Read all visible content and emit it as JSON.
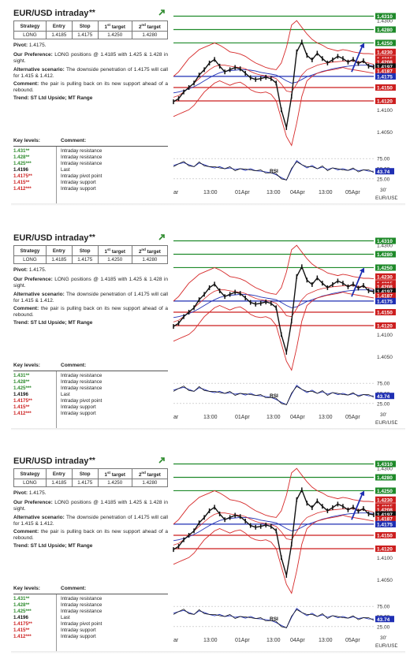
{
  "title": "EUR/USD intraday",
  "title_stars": "**",
  "strategy_table": {
    "headers": [
      "Strategy",
      "Entry",
      "Stop",
      "1st target",
      "2nd target"
    ],
    "header_parts": [
      {
        "main": "Strategy",
        "sup": ""
      },
      {
        "main": "Entry",
        "sup": ""
      },
      {
        "main": "Stop",
        "sup": ""
      },
      {
        "main": "1",
        "sup": "st",
        "rest": " target"
      },
      {
        "main": "2",
        "sup": "nd",
        "rest": " target"
      }
    ],
    "row": [
      "LONG",
      "1.4185",
      "1.4175",
      "1.4250",
      "1.4280"
    ]
  },
  "pivot_label": "Pivot:",
  "pivot_value": "1.4175.",
  "preference_label": "Our Preference:",
  "preference_text": "LONG positions @ 1.4185 with 1.425 & 1.428 in sight.",
  "alternative_label": "Alternative scenario:",
  "alternative_text": "The downside penetration of 1.4175 will call for 1.415 & 1.412.",
  "comment_label": "Comment:",
  "comment_text": "the pair is pulling back on its new support ahead of a rebound.",
  "trend_text": "Trend: ST Ltd Upside; MT Range",
  "key_levels_header": "Key levels:",
  "comment_header": "Comment:",
  "key_levels": [
    {
      "level": "1.431**",
      "comment": "Intraday resistance",
      "color": "#2e8b2e"
    },
    {
      "level": "1.428**",
      "comment": "Intraday resistance",
      "color": "#2e8b2e"
    },
    {
      "level": "1.425***",
      "comment": "Intraday resistance",
      "color": "#2e8b2e"
    },
    {
      "level": "1.4196",
      "comment": "Last",
      "color": "#111111"
    },
    {
      "level": "1.4175**",
      "comment": "Intraday pivot point",
      "color": "#cc1f1f"
    },
    {
      "level": "1.415**",
      "comment": "Intraday support",
      "color": "#cc1f1f"
    },
    {
      "level": "1.412***",
      "comment": "Intraday support",
      "color": "#cc1f1f"
    }
  ],
  "chart_data": {
    "type": "line",
    "title": "",
    "xlabel": "",
    "ylabel": "",
    "x_ticks": [
      "ar",
      "13:00",
      "01Apr",
      "13:00",
      "04Apr",
      "13:00",
      "05Apr"
    ],
    "y_ticks": [
      "1.4300",
      "1.4250",
      "1.4200",
      "1.4150",
      "1.4100",
      "1.4050"
    ],
    "ylim": [
      1.4028,
      1.4318
    ],
    "series": [
      {
        "values": [
          1.4118,
          1.4125,
          1.414,
          1.415,
          1.416,
          1.4178,
          1.419,
          1.4205,
          1.4213,
          1.4198,
          1.4185,
          1.419,
          1.4195,
          1.4192,
          1.4182,
          1.4172,
          1.4168,
          1.417,
          1.4173,
          1.417,
          1.416,
          1.41,
          1.406,
          1.413,
          1.423,
          1.4252,
          1.4222,
          1.4212,
          1.4227,
          1.4215,
          1.4205,
          1.4212,
          1.422,
          1.4215,
          1.4207,
          1.4213,
          1.4204,
          1.421,
          1.4198,
          1.4196
        ]
      },
      {
        "values": [
          1.4175,
          1.4185,
          1.42,
          1.4215,
          1.4225,
          1.4235,
          1.424,
          1.4245,
          1.425,
          1.4245,
          1.4238,
          1.423,
          1.4228,
          1.4225,
          1.422,
          1.4212,
          1.4205,
          1.42,
          1.4195,
          1.4192,
          1.419,
          1.4205,
          1.424,
          1.429,
          1.43,
          1.4285,
          1.427,
          1.4258,
          1.425,
          1.4245,
          1.4238,
          1.4235,
          1.4232,
          1.4235,
          1.4233,
          1.423,
          1.4228,
          1.4226,
          1.4226,
          1.4225
        ]
      },
      {
        "values": [
          1.4085,
          1.409,
          1.4095,
          1.41,
          1.411,
          1.4125,
          1.414,
          1.415,
          1.416,
          1.4165,
          1.416,
          1.4155,
          1.416,
          1.4162,
          1.4155,
          1.4145,
          1.414,
          1.4138,
          1.414,
          1.4135,
          1.412,
          1.408,
          1.404,
          1.402,
          1.407,
          1.413,
          1.4165,
          1.4175,
          1.4182,
          1.4185,
          1.4188,
          1.419,
          1.4192,
          1.4195,
          1.4192,
          1.419,
          1.4188,
          1.4186,
          1.4184,
          1.4182
        ]
      },
      {
        "values": [
          1.4128,
          1.4132,
          1.414,
          1.415,
          1.416,
          1.417,
          1.418,
          1.419,
          1.4197,
          1.42,
          1.42,
          1.4198,
          1.4196,
          1.4195,
          1.4192,
          1.4186,
          1.4181,
          1.4178,
          1.4176,
          1.4174,
          1.417,
          1.4158,
          1.4142,
          1.414,
          1.4158,
          1.4178,
          1.419,
          1.4195,
          1.42,
          1.4203,
          1.4205,
          1.4207,
          1.4208,
          1.4209,
          1.421,
          1.4209,
          1.4208,
          1.4207,
          1.4205,
          1.4202
        ]
      },
      {
        "values": [
          1.4138,
          1.414,
          1.4143,
          1.4147,
          1.4152,
          1.4158,
          1.4165,
          1.4172,
          1.4178,
          1.4183,
          1.4186,
          1.4188,
          1.4189,
          1.419,
          1.419,
          1.4189,
          1.4187,
          1.4184,
          1.4182,
          1.418,
          1.4178,
          1.4172,
          1.4165,
          1.416,
          1.4162,
          1.4168,
          1.4174,
          1.4178,
          1.4182,
          1.4186,
          1.4189,
          1.4192,
          1.4194,
          1.4196,
          1.4198,
          1.4199,
          1.42,
          1.42,
          1.42,
          1.4199
        ]
      }
    ],
    "levels": [
      {
        "label": "1.4310",
        "value": 1.431,
        "color": "#1f8a2a"
      },
      {
        "label": "1.4280",
        "value": 1.428,
        "color": "#1f8a2a"
      },
      {
        "label": "1.4250",
        "value": 1.425,
        "color": "#1f8a2a"
      },
      {
        "label": "1.4175",
        "value": 1.4175,
        "color": "#1f2fb3"
      },
      {
        "label": "1.4150",
        "value": 1.415,
        "color": "#cc1f1f"
      },
      {
        "label": "1.4120",
        "value": 1.412,
        "color": "#cc1f1f"
      }
    ],
    "price_tags": [
      {
        "label": "1.4230",
        "value": 1.423,
        "color": "#cc1f1f"
      },
      {
        "label": "1.4215",
        "value": 1.4215,
        "color": "#cc1f1f"
      },
      {
        "label": "1.4208",
        "value": 1.4208,
        "color": "#cc1f1f"
      },
      {
        "label": "1.4197",
        "value": 1.4197,
        "color": "#111111"
      },
      {
        "label": "1.4187",
        "value": 1.4187,
        "color": "#cc1f1f"
      },
      {
        "label": "1.4175",
        "value": 1.4175,
        "color": "#1f2fb3"
      }
    ],
    "rsi": {
      "label": "RSI",
      "y_ticks": [
        "75.00",
        "50.00",
        "25.00"
      ],
      "ylim": [
        15,
        85
      ],
      "last_label": "43.74",
      "last_value": 43.74,
      "values": [
        58,
        62,
        65,
        60,
        55,
        64,
        60,
        55,
        52,
        55,
        50,
        52,
        48,
        50,
        46,
        50,
        45,
        44,
        42,
        40,
        35,
        28,
        22,
        48,
        70,
        60,
        52,
        58,
        50,
        54,
        48,
        52,
        47,
        50,
        46,
        49,
        45,
        47,
        44,
        43.74
      ]
    },
    "timeframe": "30'",
    "pair": "EUR/USD"
  }
}
